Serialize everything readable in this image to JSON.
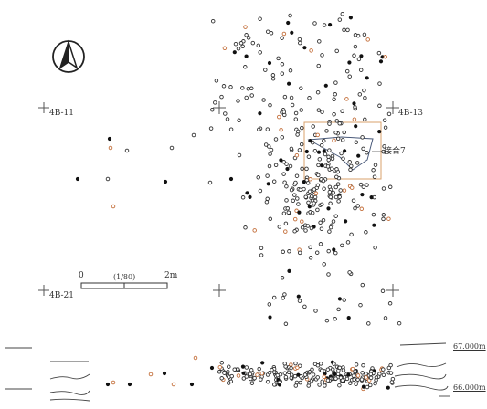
{
  "map": {
    "grid_labels": {
      "tl": "4B-11",
      "tr": "4B-13",
      "bl": "4B-21"
    },
    "scale": {
      "start": "0",
      "ratio": "(1/80)",
      "end": "2m"
    },
    "area_label": "接合7",
    "elevation": {
      "top": "67.000m",
      "bottom": "66.000m"
    },
    "north_arrow": "north-arrow-icon",
    "colors": {
      "open_artifact": "#333333",
      "filled_artifact": "#111111",
      "refit_artifact": "#c4703c",
      "refit_outline": "#d9a06b",
      "polygon": "#4a5a7a",
      "gridline": "#555555"
    }
  }
}
